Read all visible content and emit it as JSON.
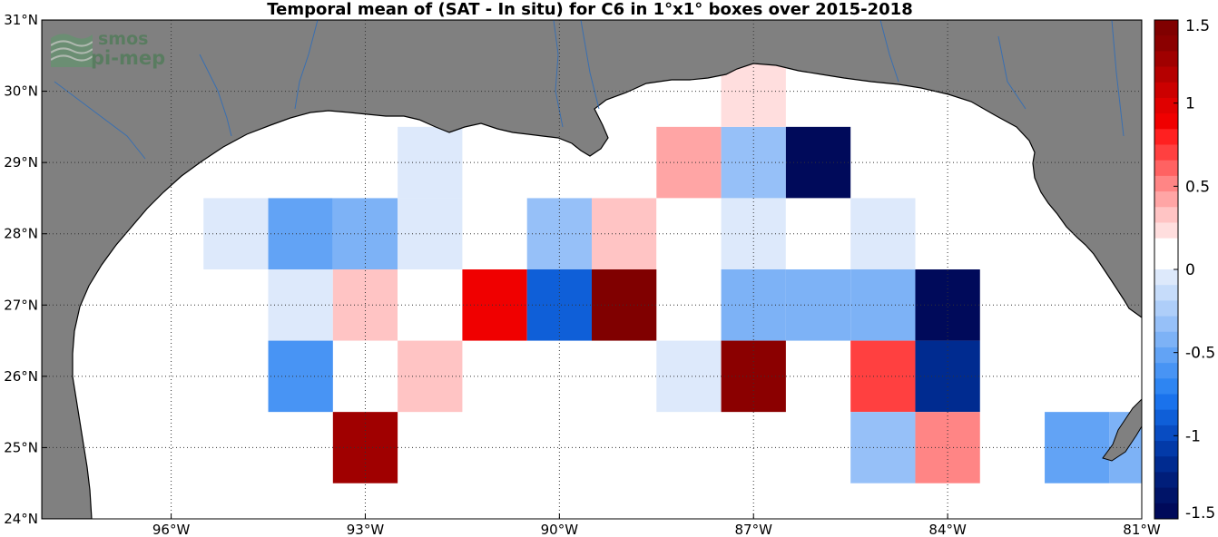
{
  "title": "Temporal mean of (SAT - In situ) for C6 in 1°x1° boxes over 2015-2018",
  "logo": {
    "line1": "smos",
    "line2": "pi-mep"
  },
  "colors": {
    "land": "#808080",
    "sea": "#ffffff",
    "coast": "#000000",
    "rivers": "#3a6fb0",
    "grid": "#333333"
  },
  "map": {
    "lon_range": [
      -98,
      -81
    ],
    "lat_range": [
      24,
      31
    ],
    "lon_ticks": [
      {
        "value": -96,
        "label": "96°W"
      },
      {
        "value": -93,
        "label": "93°W"
      },
      {
        "value": -90,
        "label": "90°W"
      },
      {
        "value": -87,
        "label": "87°W"
      },
      {
        "value": -84,
        "label": "84°W"
      },
      {
        "value": -81,
        "label": "81°W"
      }
    ],
    "lat_ticks": [
      {
        "value": 24,
        "label": "24°N"
      },
      {
        "value": 25,
        "label": "25°N"
      },
      {
        "value": 26,
        "label": "26°N"
      },
      {
        "value": 27,
        "label": "27°N"
      },
      {
        "value": 28,
        "label": "28°N"
      },
      {
        "value": 29,
        "label": "29°N"
      },
      {
        "value": 30,
        "label": "30°N"
      },
      {
        "value": 31,
        "label": "31°N"
      }
    ]
  },
  "colorbar": {
    "range": [
      -1.5,
      1.5
    ],
    "ticks": [
      {
        "value": 1.5,
        "label": "1.5"
      },
      {
        "value": 1,
        "label": "1"
      },
      {
        "value": 0.5,
        "label": "0.5"
      },
      {
        "value": 0,
        "label": "0"
      },
      {
        "value": -0.5,
        "label": "-0.5"
      },
      {
        "value": -1,
        "label": "-1"
      },
      {
        "value": -1.5,
        "label": "-1.5"
      }
    ],
    "colors_top_to_bottom": [
      "#800000",
      "#8b0000",
      "#a00000",
      "#b50000",
      "#cc0000",
      "#e00000",
      "#f00000",
      "#ff2020",
      "#ff4040",
      "#ff6262",
      "#ff8585",
      "#ffa5a5",
      "#ffc4c4",
      "#ffdede",
      "#ffffff",
      "#ffffff",
      "#dde9fb",
      "#c6dcfa",
      "#aecef9",
      "#96c0f8",
      "#7db2f6",
      "#62a3f5",
      "#4894f4",
      "#2e85f2",
      "#1a72ec",
      "#0f5fd8",
      "#084cc2",
      "#033aa8",
      "#002b90",
      "#001e7a",
      "#001468",
      "#000a5a"
    ]
  },
  "chart_data": {
    "type": "heatmap",
    "title": "Temporal mean of (SAT - In situ) for C6 in 1°x1° boxes over 2015-2018",
    "cell_size_deg": 1,
    "value_units": "colorbar scale (-1.5 to 1.5)",
    "cells": [
      {
        "lon": -92,
        "lat": 29,
        "value": -0.05
      },
      {
        "lon": -88,
        "lat": 29,
        "value": 0.45
      },
      {
        "lon": -87,
        "lat": 29,
        "value": -0.3
      },
      {
        "lon": -86,
        "lat": 29,
        "value": -1.5
      },
      {
        "lon": -87,
        "lat": 30,
        "value": 0.25
      },
      {
        "lon": -95,
        "lat": 28,
        "value": -0.05
      },
      {
        "lon": -94,
        "lat": 28,
        "value": -0.55
      },
      {
        "lon": -93,
        "lat": 28,
        "value": -0.45
      },
      {
        "lon": -92,
        "lat": 28,
        "value": -0.05
      },
      {
        "lon": -90,
        "lat": 28,
        "value": -0.3
      },
      {
        "lon": -89,
        "lat": 28,
        "value": 0.3
      },
      {
        "lon": -88,
        "lat": 28,
        "value": 0.15
      },
      {
        "lon": -87,
        "lat": 28,
        "value": -0.05
      },
      {
        "lon": -86,
        "lat": 28,
        "value": 0.15
      },
      {
        "lon": -85,
        "lat": 28,
        "value": -0.05
      },
      {
        "lon": -94,
        "lat": 27,
        "value": -0.05
      },
      {
        "lon": -93,
        "lat": 27,
        "value": 0.3
      },
      {
        "lon": -92,
        "lat": 27,
        "value": 0.15
      },
      {
        "lon": -91,
        "lat": 27,
        "value": 0.9
      },
      {
        "lon": -90,
        "lat": 27,
        "value": -0.9
      },
      {
        "lon": -89,
        "lat": 27,
        "value": 1.5
      },
      {
        "lon": -87,
        "lat": 27,
        "value": -0.4
      },
      {
        "lon": -86,
        "lat": 27,
        "value": -0.4
      },
      {
        "lon": -85,
        "lat": 27,
        "value": -0.4
      },
      {
        "lon": -84,
        "lat": 27,
        "value": -1.45
      },
      {
        "lon": -95,
        "lat": 26,
        "value": 0.15
      },
      {
        "lon": -94,
        "lat": 26,
        "value": -0.6
      },
      {
        "lon": -92,
        "lat": 26,
        "value": 0.3
      },
      {
        "lon": -88,
        "lat": 26,
        "value": -0.05
      },
      {
        "lon": -87,
        "lat": 26,
        "value": 1.4
      },
      {
        "lon": -85,
        "lat": 26,
        "value": 0.7
      },
      {
        "lon": -84,
        "lat": 26,
        "value": -1.2
      },
      {
        "lon": -93,
        "lat": 25,
        "value": 1.25
      },
      {
        "lon": -85,
        "lat": 25,
        "value": -0.3
      },
      {
        "lon": -84,
        "lat": 25,
        "value": 0.55
      },
      {
        "lon": -82,
        "lat": 25,
        "value": -0.55
      },
      {
        "lon": -81,
        "lat": 25,
        "value": -0.4
      }
    ]
  }
}
